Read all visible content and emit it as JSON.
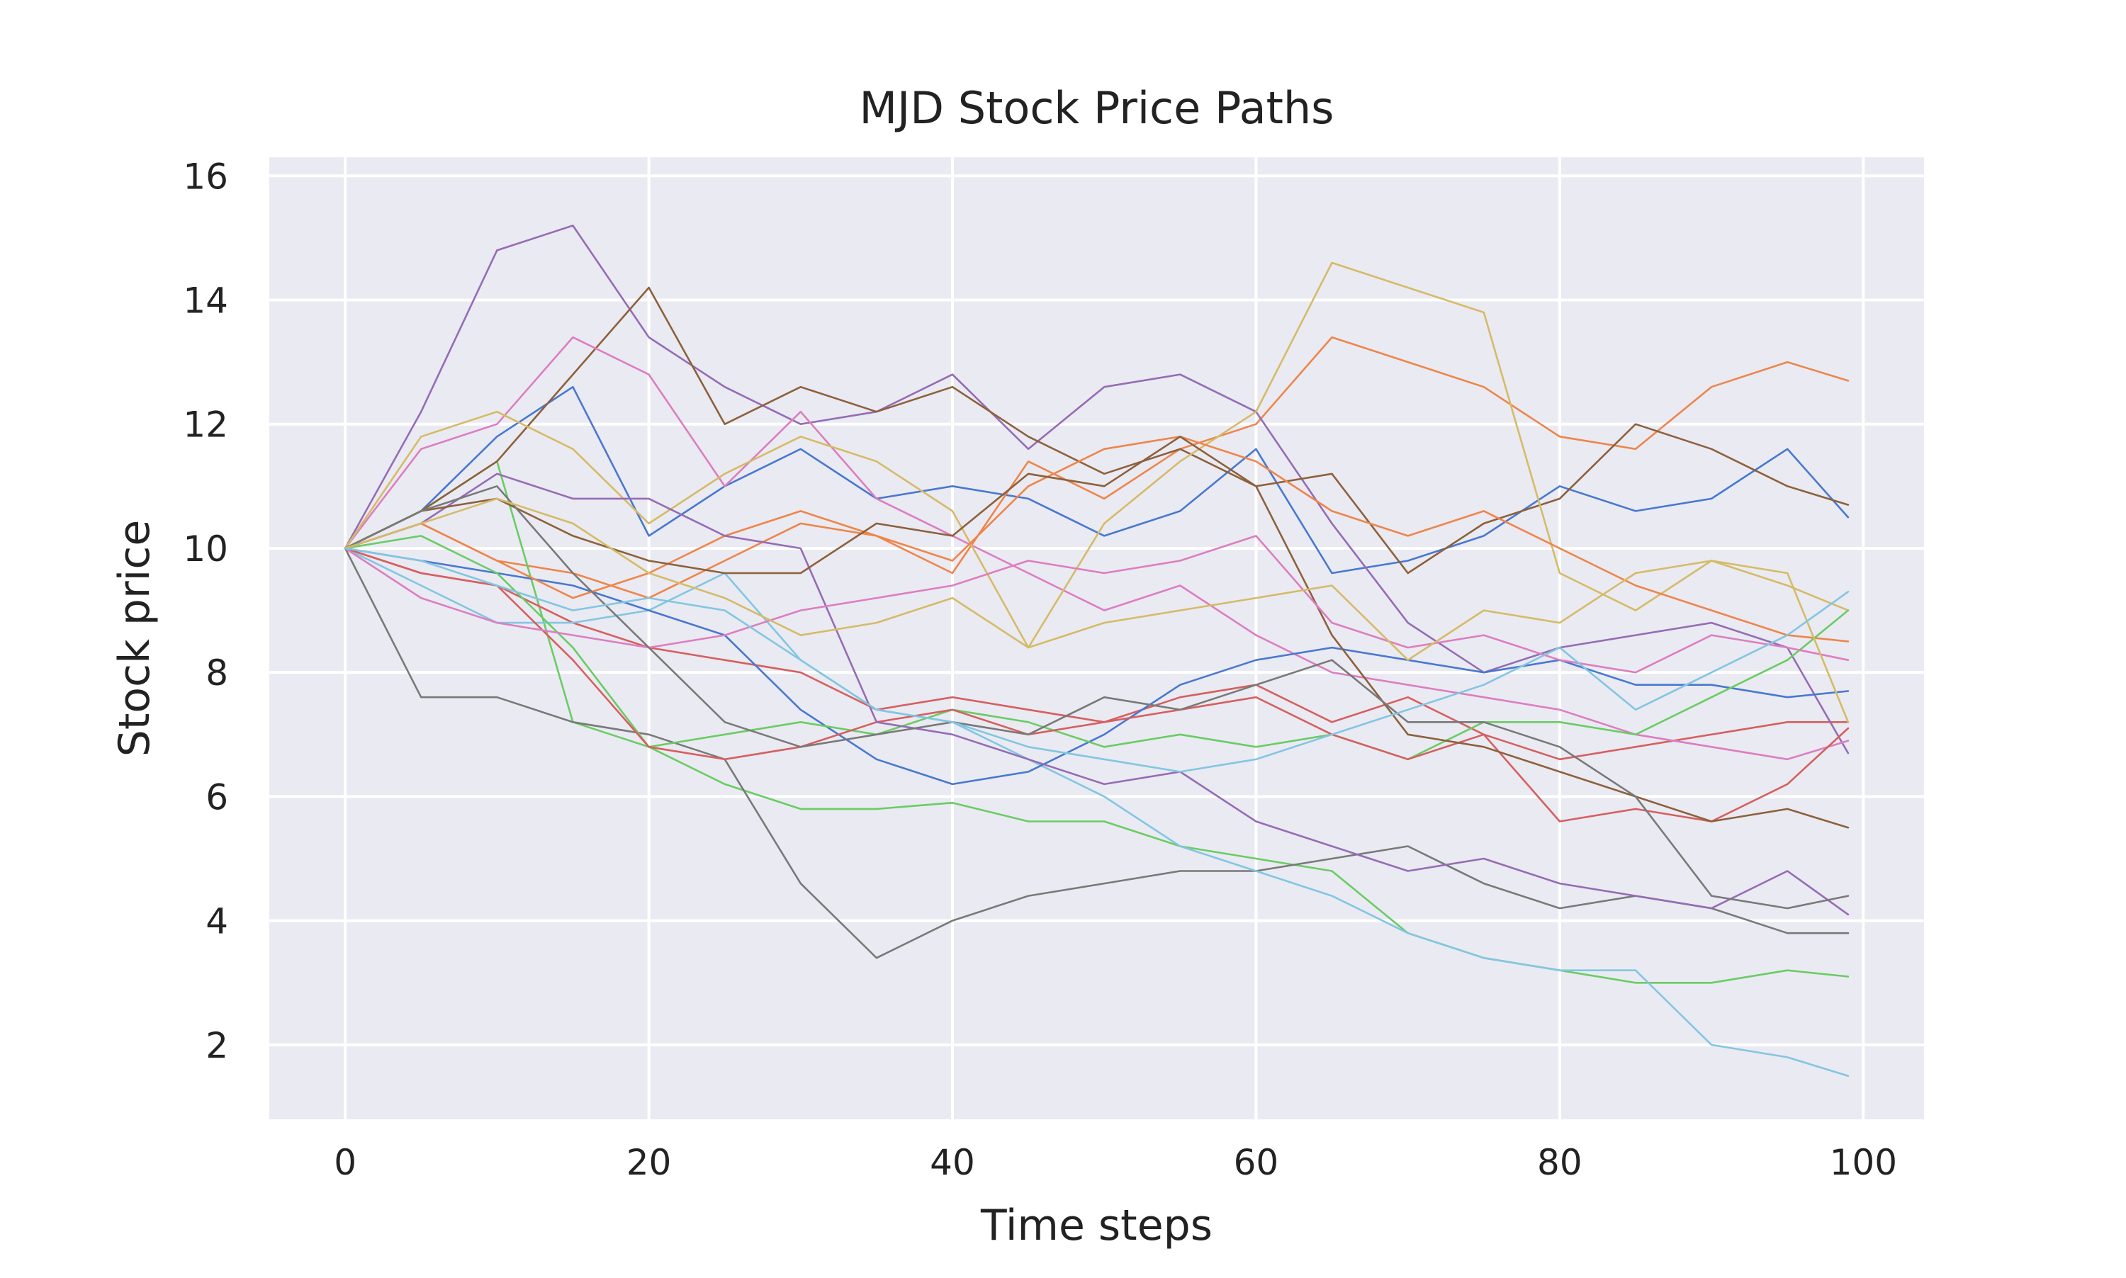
{
  "chart_data": {
    "type": "line",
    "title": "MJD Stock Price Paths",
    "xlabel": "Time steps",
    "ylabel": "Stock price",
    "xlim": [
      -5,
      104
    ],
    "ylim": [
      0.8,
      16.3
    ],
    "x_ticks": [
      0,
      20,
      40,
      60,
      80,
      100
    ],
    "y_ticks": [
      2,
      4,
      6,
      8,
      10,
      12,
      14,
      16
    ],
    "grid": true,
    "legend": "none",
    "x": [
      0,
      5,
      10,
      15,
      20,
      25,
      30,
      35,
      40,
      45,
      50,
      55,
      60,
      65,
      70,
      75,
      80,
      85,
      90,
      95,
      99
    ],
    "series": [
      {
        "color": "#4878d0",
        "values": [
          10.0,
          10.6,
          11.8,
          12.6,
          10.2,
          11.0,
          11.6,
          10.8,
          11.0,
          10.8,
          10.2,
          10.6,
          11.6,
          9.6,
          9.8,
          10.2,
          11.0,
          10.6,
          10.8,
          11.6,
          10.5
        ]
      },
      {
        "color": "#ee854a",
        "values": [
          10.0,
          10.4,
          9.8,
          9.6,
          9.2,
          9.8,
          10.4,
          10.2,
          9.6,
          11.4,
          10.8,
          11.6,
          12.0,
          13.4,
          13.0,
          12.6,
          11.8,
          11.6,
          12.6,
          13.0,
          12.7
        ]
      },
      {
        "color": "#6acc64",
        "values": [
          10.0,
          10.6,
          11.4,
          7.2,
          6.8,
          6.2,
          5.8,
          5.8,
          5.9,
          5.6,
          5.6,
          5.2,
          5.0,
          4.8,
          3.8,
          3.4,
          3.2,
          3.0,
          3.0,
          3.2,
          3.1
        ]
      },
      {
        "color": "#d65f5f",
        "values": [
          10.0,
          9.6,
          9.4,
          8.8,
          8.4,
          8.2,
          8.0,
          7.4,
          7.6,
          7.4,
          7.2,
          7.6,
          7.8,
          7.2,
          7.6,
          7.0,
          6.6,
          6.8,
          7.0,
          7.2,
          7.2
        ]
      },
      {
        "color": "#956cb4",
        "values": [
          10.0,
          12.2,
          14.8,
          15.2,
          13.4,
          12.6,
          12.0,
          12.2,
          12.8,
          11.6,
          12.6,
          12.8,
          12.2,
          10.4,
          8.8,
          8.0,
          8.4,
          8.6,
          8.8,
          8.4,
          6.7
        ]
      },
      {
        "color": "#8c613c",
        "values": [
          10.0,
          10.6,
          11.4,
          12.8,
          14.2,
          12.0,
          12.6,
          12.2,
          12.6,
          11.8,
          11.2,
          11.6,
          11.0,
          11.2,
          9.6,
          10.4,
          10.8,
          12.0,
          11.6,
          11.0,
          10.7
        ]
      },
      {
        "color": "#dc7ec0",
        "values": [
          10.0,
          11.6,
          12.0,
          13.4,
          12.8,
          11.0,
          12.2,
          10.8,
          10.2,
          9.6,
          9.0,
          9.4,
          8.6,
          8.0,
          7.8,
          7.6,
          7.4,
          7.0,
          6.8,
          6.6,
          6.9
        ]
      },
      {
        "color": "#797979",
        "values": [
          10.0,
          7.6,
          7.6,
          7.2,
          7.0,
          6.6,
          4.6,
          3.4,
          4.0,
          4.4,
          4.6,
          4.8,
          4.8,
          5.0,
          5.2,
          4.6,
          4.2,
          4.4,
          4.2,
          3.8,
          3.8
        ]
      },
      {
        "color": "#d5bb67",
        "values": [
          10.0,
          11.8,
          12.2,
          11.6,
          10.4,
          11.2,
          11.8,
          11.4,
          10.6,
          8.4,
          10.4,
          11.4,
          12.2,
          14.6,
          14.2,
          13.8,
          9.6,
          9.0,
          9.8,
          9.4,
          9.0
        ]
      },
      {
        "color": "#82c6e2",
        "values": [
          10.0,
          9.4,
          8.8,
          8.8,
          9.0,
          9.6,
          8.2,
          7.4,
          7.2,
          6.6,
          6.0,
          5.2,
          4.8,
          4.4,
          3.8,
          3.4,
          3.2,
          3.2,
          2.0,
          1.8,
          1.5
        ]
      },
      {
        "color": "#4878d0",
        "values": [
          10.0,
          9.8,
          9.6,
          9.4,
          9.0,
          8.6,
          7.4,
          6.6,
          6.2,
          6.4,
          7.0,
          7.8,
          8.2,
          8.4,
          8.2,
          8.0,
          8.2,
          7.8,
          7.8,
          7.6,
          7.7
        ]
      },
      {
        "color": "#ee854a",
        "values": [
          10.0,
          10.4,
          9.8,
          9.2,
          9.6,
          10.2,
          10.6,
          10.2,
          9.8,
          11.0,
          11.6,
          11.8,
          11.4,
          10.6,
          10.2,
          10.6,
          10.0,
          9.4,
          9.0,
          8.6,
          8.5
        ]
      },
      {
        "color": "#6acc64",
        "values": [
          10.0,
          10.2,
          9.6,
          8.4,
          6.8,
          7.0,
          7.2,
          7.0,
          7.4,
          7.2,
          6.8,
          7.0,
          6.8,
          7.0,
          6.6,
          7.2,
          7.2,
          7.0,
          7.6,
          8.2,
          9.0
        ]
      },
      {
        "color": "#d65f5f",
        "values": [
          10.0,
          9.6,
          9.4,
          8.2,
          6.8,
          6.6,
          6.8,
          7.2,
          7.4,
          7.0,
          7.2,
          7.4,
          7.6,
          7.0,
          6.6,
          7.0,
          5.6,
          5.8,
          5.6,
          6.2,
          7.1
        ]
      },
      {
        "color": "#956cb4",
        "values": [
          10.0,
          10.4,
          11.2,
          10.8,
          10.8,
          10.2,
          10.0,
          7.2,
          7.0,
          6.6,
          6.2,
          6.4,
          5.6,
          5.2,
          4.8,
          5.0,
          4.6,
          4.4,
          4.2,
          4.8,
          4.1
        ]
      },
      {
        "color": "#8c613c",
        "values": [
          10.0,
          10.6,
          10.8,
          10.2,
          9.8,
          9.6,
          9.6,
          10.4,
          10.2,
          11.2,
          11.0,
          11.8,
          11.0,
          8.6,
          7.0,
          6.8,
          6.4,
          6.0,
          5.6,
          5.8,
          5.5
        ]
      },
      {
        "color": "#dc7ec0",
        "values": [
          10.0,
          9.2,
          8.8,
          8.6,
          8.4,
          8.6,
          9.0,
          9.2,
          9.4,
          9.8,
          9.6,
          9.8,
          10.2,
          8.8,
          8.4,
          8.6,
          8.2,
          8.0,
          8.6,
          8.4,
          8.2
        ]
      },
      {
        "color": "#797979",
        "values": [
          10.0,
          10.6,
          11.0,
          9.6,
          8.4,
          7.2,
          6.8,
          7.0,
          7.2,
          7.0,
          7.6,
          7.4,
          7.8,
          8.2,
          7.2,
          7.2,
          6.8,
          6.0,
          4.4,
          4.2,
          4.4
        ]
      },
      {
        "color": "#d5bb67",
        "values": [
          10.0,
          10.4,
          10.8,
          10.4,
          9.6,
          9.2,
          8.6,
          8.8,
          9.2,
          8.4,
          8.8,
          9.0,
          9.2,
          9.4,
          8.2,
          9.0,
          8.8,
          9.6,
          9.8,
          9.6,
          7.2
        ]
      },
      {
        "color": "#82c6e2",
        "values": [
          10.0,
          9.8,
          9.4,
          9.0,
          9.2,
          9.0,
          8.2,
          7.4,
          7.2,
          6.8,
          6.6,
          6.4,
          6.6,
          7.0,
          7.4,
          7.8,
          8.4,
          7.4,
          8.0,
          8.6,
          9.3
        ]
      }
    ]
  }
}
